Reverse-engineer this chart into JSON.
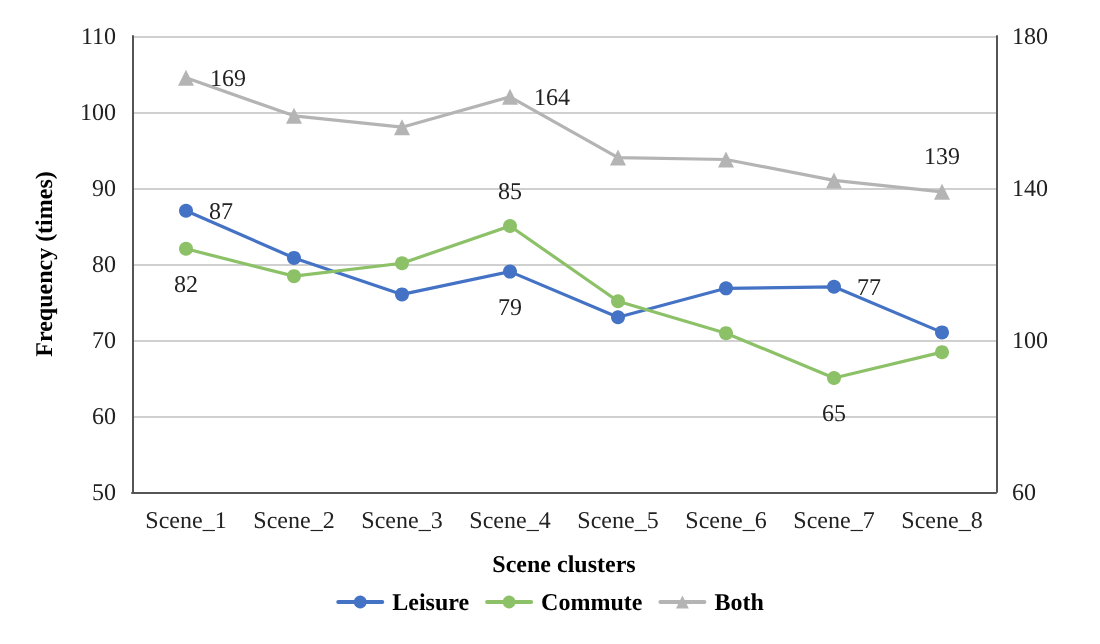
{
  "chart_data": {
    "type": "line",
    "xlabel": "Scene clusters",
    "ylabel": "Frequency (times)",
    "categories": [
      "Scene_1",
      "Scene_2",
      "Scene_3",
      "Scene_4",
      "Scene_5",
      "Scene_6",
      "Scene_7",
      "Scene_8"
    ],
    "series": [
      {
        "name": "Leisure",
        "color": "#4472c4",
        "marker": "circle",
        "values": [
          87,
          80.8,
          76,
          79,
          73,
          76.8,
          77,
          71
        ],
        "value_labels": [
          "87",
          null,
          null,
          "79",
          null,
          null,
          "77",
          null
        ]
      },
      {
        "name": "Commute",
        "color": "#8cc168",
        "marker": "circle",
        "values": [
          82,
          78.4,
          80.1,
          85,
          75.1,
          70.9,
          65,
          68.4
        ],
        "value_labels": [
          "82",
          null,
          null,
          "85",
          null,
          null,
          "65",
          null
        ]
      },
      {
        "name": "Both",
        "color": "#b4b4b4",
        "marker": "triangle",
        "axis": "y2",
        "values": [
          169,
          159,
          156,
          164,
          148,
          147.5,
          142,
          139
        ],
        "value_labels": [
          "169",
          null,
          null,
          "164",
          null,
          null,
          null,
          "139"
        ]
      }
    ],
    "ylim": [
      50,
      110
    ],
    "yticks": [
      50,
      60,
      70,
      80,
      90,
      100,
      110
    ],
    "y2lim": [
      60,
      180
    ],
    "y2ticks": [
      60,
      100,
      140,
      180
    ],
    "grid": "y",
    "legend": "bottom"
  }
}
